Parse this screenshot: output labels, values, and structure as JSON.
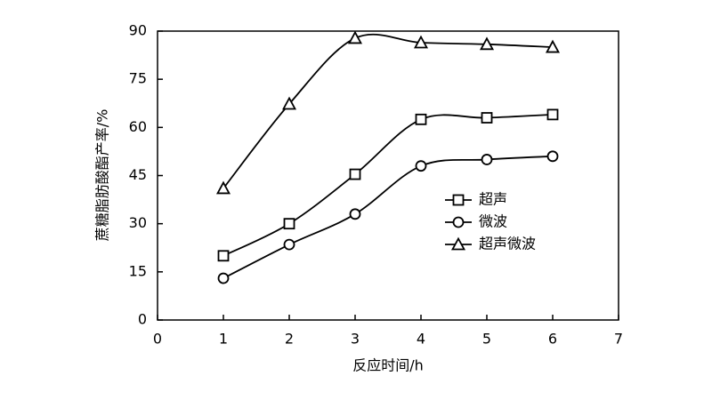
{
  "chart_data": {
    "type": "line",
    "x_label": "反应时间/h",
    "y_label": "蔗糖脂肪酸酯产率/%",
    "x": [
      1,
      2,
      3,
      4,
      5,
      6
    ],
    "series": [
      {
        "name": "超声",
        "color": "#000000",
        "marker": "square",
        "values": [
          20,
          30,
          45.4,
          62.5,
          63,
          64
        ]
      },
      {
        "name": "微波",
        "color": "#000000",
        "marker": "circle",
        "values": [
          13,
          23.5,
          33,
          48,
          50,
          51
        ]
      },
      {
        "name": "超声微波",
        "color": "#000000",
        "marker": "triangle",
        "values": [
          41,
          67.3,
          87.8,
          86.4,
          85.9,
          85
        ]
      }
    ],
    "xlim": [
      0,
      7
    ],
    "xticks": [
      0,
      1,
      2,
      3,
      4,
      5,
      6,
      7
    ],
    "ylim": [
      0,
      90
    ],
    "yticks": [
      0,
      15,
      30,
      45,
      60,
      75,
      90
    ],
    "grid": false,
    "legend": "right",
    "smooth": true
  }
}
